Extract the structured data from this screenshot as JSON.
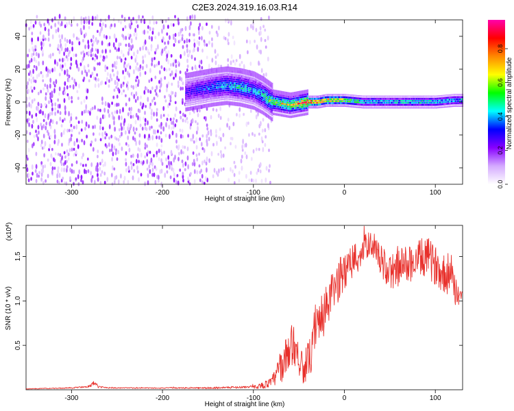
{
  "chart_data": [
    {
      "type": "heatmap",
      "title": "C2E3.2024.319.16.03.R14",
      "xlabel": "Height of straight line (km)",
      "ylabel": "Frequency (Hz)",
      "xlim": [
        -350,
        130
      ],
      "ylim": [
        -50,
        50
      ],
      "xticks": [
        -300,
        -200,
        -100,
        0,
        100
      ],
      "yticks": [
        -40,
        -20,
        0,
        20,
        40
      ],
      "grid": false,
      "colorbar": {
        "label": "Normalized spectral amplitude",
        "range": [
          0,
          0.97
        ],
        "ticks": [
          0.0,
          0.2,
          0.4,
          0.6,
          0.8
        ],
        "colors": [
          "#ffffff",
          "#d4aaff",
          "#8800ff",
          "#0000ff",
          "#00ffff",
          "#00ff00",
          "#ffff00",
          "#ff8800",
          "#ff0000",
          "#ff00aa"
        ]
      },
      "ridge": {
        "description": "bright ridge drifting from ~8 Hz near -140 km down to ~0 Hz beyond -40 km",
        "x": [
          -175,
          -145,
          -130,
          -115,
          -100,
          -90,
          -80,
          -70,
          -60,
          -50,
          -40,
          -30,
          -20,
          -10,
          0,
          20,
          40,
          60,
          80,
          100,
          120,
          130
        ],
        "freq": [
          6,
          9,
          10,
          9,
          7,
          4,
          0,
          -1,
          -2,
          -1,
          0,
          0,
          1,
          1,
          1,
          0,
          0,
          0,
          0,
          0,
          1,
          1
        ],
        "amplitude": [
          0.3,
          0.4,
          0.45,
          0.5,
          0.45,
          0.5,
          0.6,
          0.65,
          0.7,
          0.75,
          0.9,
          0.85,
          0.8,
          0.75,
          0.7,
          0.5,
          0.5,
          0.5,
          0.55,
          0.5,
          0.5,
          0.5
        ]
      },
      "noise_region": {
        "x_range": [
          -350,
          -80
        ],
        "amplitude_range": [
          0.05,
          0.35
        ]
      }
    },
    {
      "type": "line",
      "xlabel": "Height of straight line (km)",
      "ylabel": "SNR (10 * v/v)",
      "yscale_note": "(x10^4)",
      "y_multiplier_base": "x10",
      "y_multiplier_exp": "4",
      "xlim": [
        -350,
        130
      ],
      "ylim": [
        0,
        1.85
      ],
      "xticks": [
        -300,
        -200,
        -100,
        0,
        100
      ],
      "yticks": [
        0.5,
        1.0,
        1.5
      ],
      "ytick_labels": [
        "0.5",
        "1.0",
        "1.5"
      ],
      "color": "#e8302b",
      "series": [
        {
          "x": [
            -350,
            -300,
            -280,
            -275,
            -270,
            -250,
            -200,
            -150,
            -110,
            -100,
            -90,
            -80,
            -70,
            -60,
            -55,
            -50,
            -45,
            -40,
            -35,
            -30,
            -25,
            -20,
            -15,
            -10,
            -5,
            0,
            10,
            20,
            25,
            30,
            35,
            40,
            50,
            60,
            70,
            80,
            90,
            100,
            110,
            120,
            125,
            130
          ],
          "y": [
            0.01,
            0.02,
            0.04,
            0.08,
            0.03,
            0.02,
            0.02,
            0.02,
            0.03,
            0.03,
            0.05,
            0.08,
            0.25,
            0.45,
            0.55,
            0.35,
            0.25,
            0.3,
            0.45,
            0.7,
            0.8,
            0.9,
            1.05,
            1.15,
            1.25,
            1.35,
            1.45,
            1.55,
            1.62,
            1.65,
            1.6,
            1.45,
            1.3,
            1.38,
            1.42,
            1.45,
            1.5,
            1.4,
            1.3,
            1.2,
            1.1,
            1.0
          ],
          "noise_amplitude": [
            0.003,
            0.005,
            0.01,
            0.02,
            0.01,
            0.005,
            0.005,
            0.008,
            0.01,
            0.015,
            0.03,
            0.05,
            0.15,
            0.2,
            0.22,
            0.18,
            0.15,
            0.18,
            0.2,
            0.22,
            0.22,
            0.22,
            0.2,
            0.2,
            0.2,
            0.18,
            0.18,
            0.15,
            0.12,
            0.12,
            0.12,
            0.15,
            0.18,
            0.18,
            0.18,
            0.18,
            0.2,
            0.18,
            0.18,
            0.18,
            0.18,
            0.18
          ]
        }
      ]
    }
  ]
}
